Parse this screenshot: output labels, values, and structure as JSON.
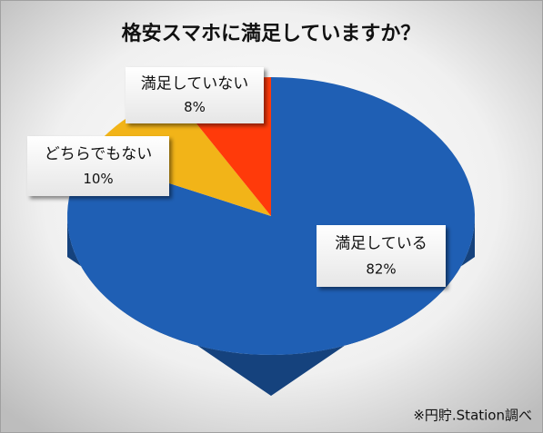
{
  "chart_data": {
    "type": "pie",
    "title": "格安スマホに満足していますか？",
    "categories": [
      "満足している",
      "どちらでもない",
      "満足していない"
    ],
    "values": [
      82,
      10,
      8
    ],
    "value_labels": [
      "82%",
      "10%",
      "8%"
    ],
    "colors": [
      "#1f5fb4",
      "#f2b418",
      "#ff3a0a"
    ],
    "note": "※円貯.Station調べ"
  }
}
